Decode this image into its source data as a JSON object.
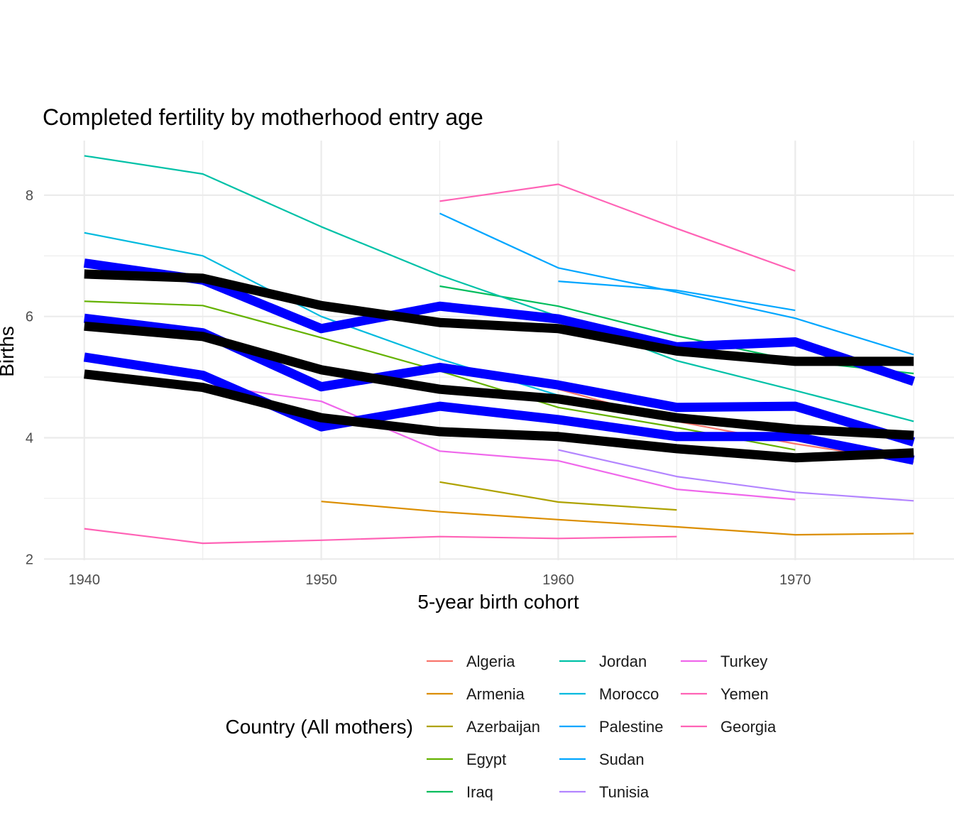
{
  "chart_data": {
    "type": "line",
    "title": "Completed fertility by motherhood entry age",
    "xlabel": "5-year birth cohort",
    "ylabel": "Births",
    "xlim": [
      1938.3,
      1976.7
    ],
    "ylim": [
      1.98,
      8.9
    ],
    "x_ticks": [
      1940,
      1950,
      1960,
      1970
    ],
    "y_ticks": [
      2,
      4,
      6,
      8
    ],
    "grid": true,
    "legend_title": "Country (All mothers)",
    "legend_position": "bottom",
    "series": [
      {
        "name": "Algeria",
        "color": "#F8766D",
        "points": [
          [
            1960,
            4.8
          ],
          [
            1965,
            4.27
          ],
          [
            1970,
            3.9
          ],
          [
            1975,
            3.6
          ]
        ]
      },
      {
        "name": "Armenia",
        "color": "#DB8E00",
        "points": [
          [
            1950,
            2.95
          ],
          [
            1955,
            2.78
          ],
          [
            1960,
            2.65
          ],
          [
            1965,
            2.53
          ],
          [
            1970,
            2.4
          ],
          [
            1975,
            2.42
          ]
        ]
      },
      {
        "name": "Azerbaijan",
        "color": "#AEA200",
        "points": [
          [
            1955,
            3.27
          ],
          [
            1960,
            2.94
          ],
          [
            1965,
            2.81
          ]
        ]
      },
      {
        "name": "Egypt",
        "color": "#64B200",
        "points": [
          [
            1940,
            6.25
          ],
          [
            1945,
            6.18
          ],
          [
            1950,
            5.65
          ],
          [
            1955,
            5.1
          ],
          [
            1960,
            4.5
          ],
          [
            1965,
            4.17
          ],
          [
            1970,
            3.8
          ]
        ]
      },
      {
        "name": "Iraq",
        "color": "#00BD5C",
        "points": [
          [
            1955,
            6.5
          ],
          [
            1960,
            6.17
          ],
          [
            1965,
            5.68
          ],
          [
            1970,
            5.27
          ],
          [
            1975,
            5.06
          ]
        ]
      },
      {
        "name": "Jordan",
        "color": "#00C1A7",
        "points": [
          [
            1940,
            8.65
          ],
          [
            1945,
            8.35
          ],
          [
            1950,
            7.48
          ],
          [
            1955,
            6.68
          ],
          [
            1960,
            6.0
          ],
          [
            1965,
            5.27
          ],
          [
            1970,
            4.78
          ],
          [
            1975,
            4.27
          ]
        ]
      },
      {
        "name": "Morocco",
        "color": "#00BADE",
        "points": [
          [
            1940,
            7.38
          ],
          [
            1945,
            7.0
          ],
          [
            1950,
            6.0
          ],
          [
            1955,
            5.3
          ],
          [
            1960,
            4.7
          ]
        ]
      },
      {
        "name": "Palestine",
        "color": "#00A6FF",
        "points": [
          [
            1955,
            7.7
          ],
          [
            1960,
            6.8
          ],
          [
            1965,
            6.4
          ],
          [
            1970,
            5.97
          ],
          [
            1975,
            5.37
          ]
        ]
      },
      {
        "name": "Sudan",
        "color": "#00A6FF",
        "points": [
          [
            1960,
            6.58
          ],
          [
            1965,
            6.43
          ],
          [
            1970,
            6.1
          ]
        ]
      },
      {
        "name": "Tunisia",
        "color": "#B385FF",
        "points": [
          [
            1960,
            3.8
          ],
          [
            1965,
            3.36
          ],
          [
            1970,
            3.1
          ],
          [
            1975,
            2.96
          ]
        ]
      },
      {
        "name": "Turkey",
        "color": "#EF67EB",
        "points": [
          [
            1945,
            4.88
          ],
          [
            1950,
            4.6
          ],
          [
            1955,
            3.78
          ],
          [
            1960,
            3.62
          ],
          [
            1965,
            3.15
          ],
          [
            1970,
            2.98
          ]
        ]
      },
      {
        "name": "Yemen",
        "color": "#FF63B6",
        "points": [
          [
            1955,
            7.9
          ],
          [
            1960,
            8.18
          ],
          [
            1965,
            7.45
          ],
          [
            1970,
            6.75
          ]
        ]
      },
      {
        "name": "Georgia",
        "color": "#FF63B6",
        "points": [
          [
            1940,
            2.5
          ],
          [
            1945,
            2.26
          ],
          [
            1950,
            2.31
          ],
          [
            1955,
            2.37
          ],
          [
            1960,
            2.34
          ],
          [
            1965,
            2.37
          ]
        ]
      }
    ],
    "overlay_series": [
      {
        "color": "#0000FF",
        "points": [
          [
            1940,
            6.88
          ],
          [
            1945,
            6.6
          ],
          [
            1950,
            5.8
          ],
          [
            1955,
            6.17
          ],
          [
            1960,
            5.96
          ],
          [
            1965,
            5.5
          ],
          [
            1970,
            5.58
          ],
          [
            1975,
            4.93
          ]
        ]
      },
      {
        "color": "#0000FF",
        "points": [
          [
            1940,
            5.97
          ],
          [
            1945,
            5.73
          ],
          [
            1950,
            4.84
          ],
          [
            1955,
            5.16
          ],
          [
            1960,
            4.87
          ],
          [
            1965,
            4.5
          ],
          [
            1970,
            4.52
          ],
          [
            1975,
            3.93
          ]
        ]
      },
      {
        "color": "#0000FF",
        "points": [
          [
            1940,
            5.33
          ],
          [
            1945,
            5.03
          ],
          [
            1950,
            4.18
          ],
          [
            1955,
            4.52
          ],
          [
            1960,
            4.3
          ],
          [
            1965,
            4.02
          ],
          [
            1970,
            4.02
          ],
          [
            1975,
            3.63
          ]
        ]
      },
      {
        "color": "#000000",
        "points": [
          [
            1940,
            6.7
          ],
          [
            1945,
            6.63
          ],
          [
            1950,
            6.18
          ],
          [
            1955,
            5.9
          ],
          [
            1960,
            5.8
          ],
          [
            1965,
            5.43
          ],
          [
            1970,
            5.26
          ],
          [
            1975,
            5.26
          ]
        ]
      },
      {
        "color": "#000000",
        "points": [
          [
            1940,
            5.84
          ],
          [
            1945,
            5.67
          ],
          [
            1950,
            5.12
          ],
          [
            1955,
            4.8
          ],
          [
            1960,
            4.64
          ],
          [
            1965,
            4.33
          ],
          [
            1970,
            4.14
          ],
          [
            1975,
            4.04
          ]
        ]
      },
      {
        "color": "#000000",
        "points": [
          [
            1940,
            5.05
          ],
          [
            1945,
            4.83
          ],
          [
            1950,
            4.33
          ],
          [
            1955,
            4.1
          ],
          [
            1960,
            4.02
          ],
          [
            1965,
            3.82
          ],
          [
            1970,
            3.67
          ],
          [
            1975,
            3.75
          ]
        ]
      }
    ],
    "legend_entries": [
      {
        "label": "Algeria",
        "color": "#F8766D"
      },
      {
        "label": "Armenia",
        "color": "#DB8E00"
      },
      {
        "label": "Azerbaijan",
        "color": "#AEA200"
      },
      {
        "label": "Egypt",
        "color": "#64B200"
      },
      {
        "label": "Iraq",
        "color": "#00BD5C"
      },
      {
        "label": "Jordan",
        "color": "#00C1A7"
      },
      {
        "label": "Morocco",
        "color": "#00BADE"
      },
      {
        "label": "Palestine",
        "color": "#00A6FF"
      },
      {
        "label": "Sudan",
        "color": "#00A6FF"
      },
      {
        "label": "Tunisia",
        "color": "#B385FF"
      },
      {
        "label": "Turkey",
        "color": "#EF67EB"
      },
      {
        "label": "Yemen",
        "color": "#FF63B6"
      },
      {
        "label": "Georgia",
        "color": "#FF63B6"
      }
    ]
  }
}
